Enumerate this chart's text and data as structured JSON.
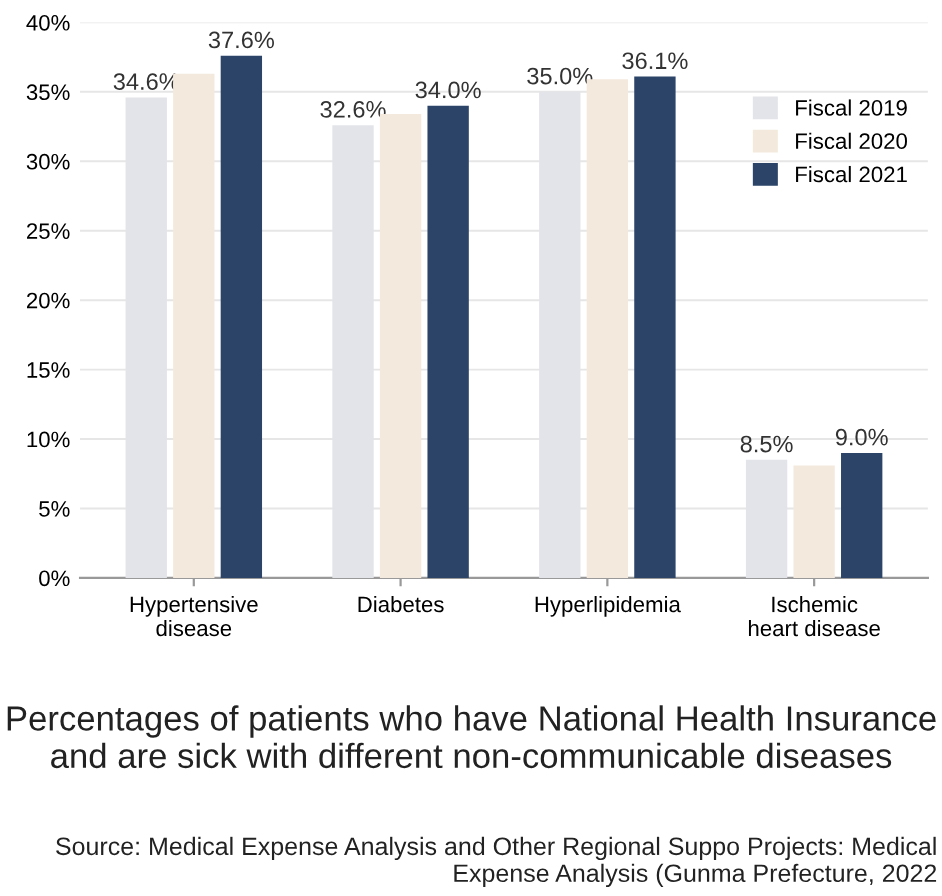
{
  "chart_data": {
    "type": "bar",
    "categories": [
      "Hypertensive\ndisease",
      "Diabetes",
      "Hyperlipidemia",
      "Ischemic\nheart disease"
    ],
    "series": [
      {
        "name": "Fiscal 2019",
        "color": "#e3e4e9",
        "values": [
          34.6,
          32.6,
          35.0,
          8.5
        ],
        "value_labels": [
          "34.6%",
          "32.6%",
          "35.0%",
          "8.5%"
        ]
      },
      {
        "name": "Fiscal 2020",
        "color": "#f4e9dd",
        "values": [
          36.3,
          33.4,
          35.9,
          8.1
        ],
        "value_labels": [
          null,
          null,
          null,
          null
        ]
      },
      {
        "name": "Fiscal 2021",
        "color": "#2b4468",
        "values": [
          37.6,
          34.0,
          36.1,
          9.0
        ],
        "value_labels": [
          "37.6%",
          "34.0%",
          "36.1%",
          "9.0%"
        ]
      }
    ],
    "ylim": [
      0,
      40
    ],
    "yticks": [
      {
        "value": 0,
        "label": "0%"
      },
      {
        "value": 5,
        "label": "5%"
      },
      {
        "value": 10,
        "label": "10%"
      },
      {
        "value": 15,
        "label": "15%"
      },
      {
        "value": 20,
        "label": "20%"
      },
      {
        "value": 25,
        "label": "25%"
      },
      {
        "value": 30,
        "label": "30%"
      },
      {
        "value": 35,
        "label": "35%"
      },
      {
        "value": 40,
        "label": "40%"
      }
    ],
    "grid": "y",
    "legend": "top right",
    "title": "Percentages of patients who have National Health Insurance and are sick with different non-communicable diseases",
    "annotations": [
      "Source: Medical Expense Analysis and Other Regional Suppo Projects: Medical Expense Analysis (Gunma Prefecture, 2022"
    ]
  }
}
